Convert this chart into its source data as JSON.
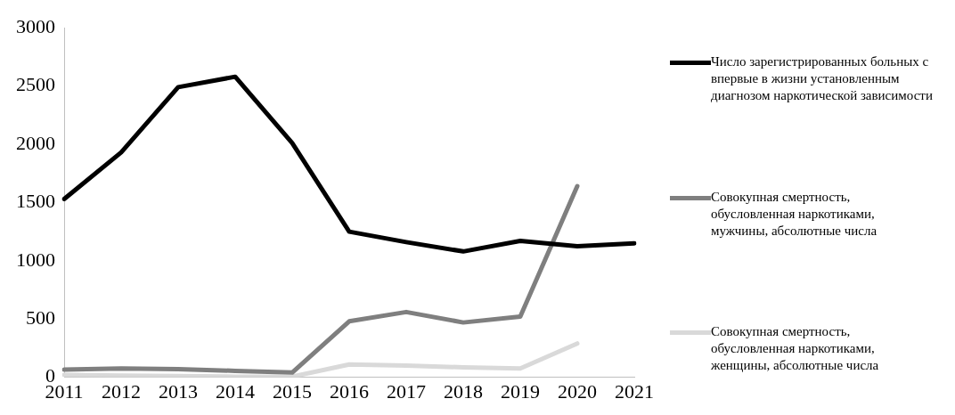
{
  "chart_data": {
    "type": "line",
    "categories": [
      "2011",
      "2012",
      "2013",
      "2014",
      "2015",
      "2016",
      "2017",
      "2018",
      "2019",
      "2020",
      "2021"
    ],
    "ylim": [
      0,
      3000
    ],
    "yticks": [
      0,
      500,
      1000,
      1500,
      2000,
      2500,
      3000
    ],
    "grid": false,
    "legend": "right",
    "marker": "none",
    "line_style": "solid",
    "series": [
      {
        "name": "Число зарегистрированных больных с впервые в жизни установленным диагнозом наркотической зависимости",
        "color": "#000000",
        "values": [
          1530,
          1930,
          2490,
          2580,
          2010,
          1250,
          1160,
          1080,
          1170,
          1125,
          1150
        ]
      },
      {
        "name": "Совокупная смертность, обусловленная наркотиками, мужчины, абсолютные числа",
        "color": "#7f7f7f",
        "values": [
          65,
          75,
          70,
          55,
          40,
          480,
          560,
          470,
          520,
          1640,
          null
        ]
      },
      {
        "name": "Совокупная смертность, обусловленная наркотиками, женщины, абсолютные числа",
        "color": "#d9d9d9",
        "values": [
          20,
          15,
          10,
          5,
          5,
          110,
          100,
          85,
          75,
          290,
          null
        ]
      }
    ]
  }
}
